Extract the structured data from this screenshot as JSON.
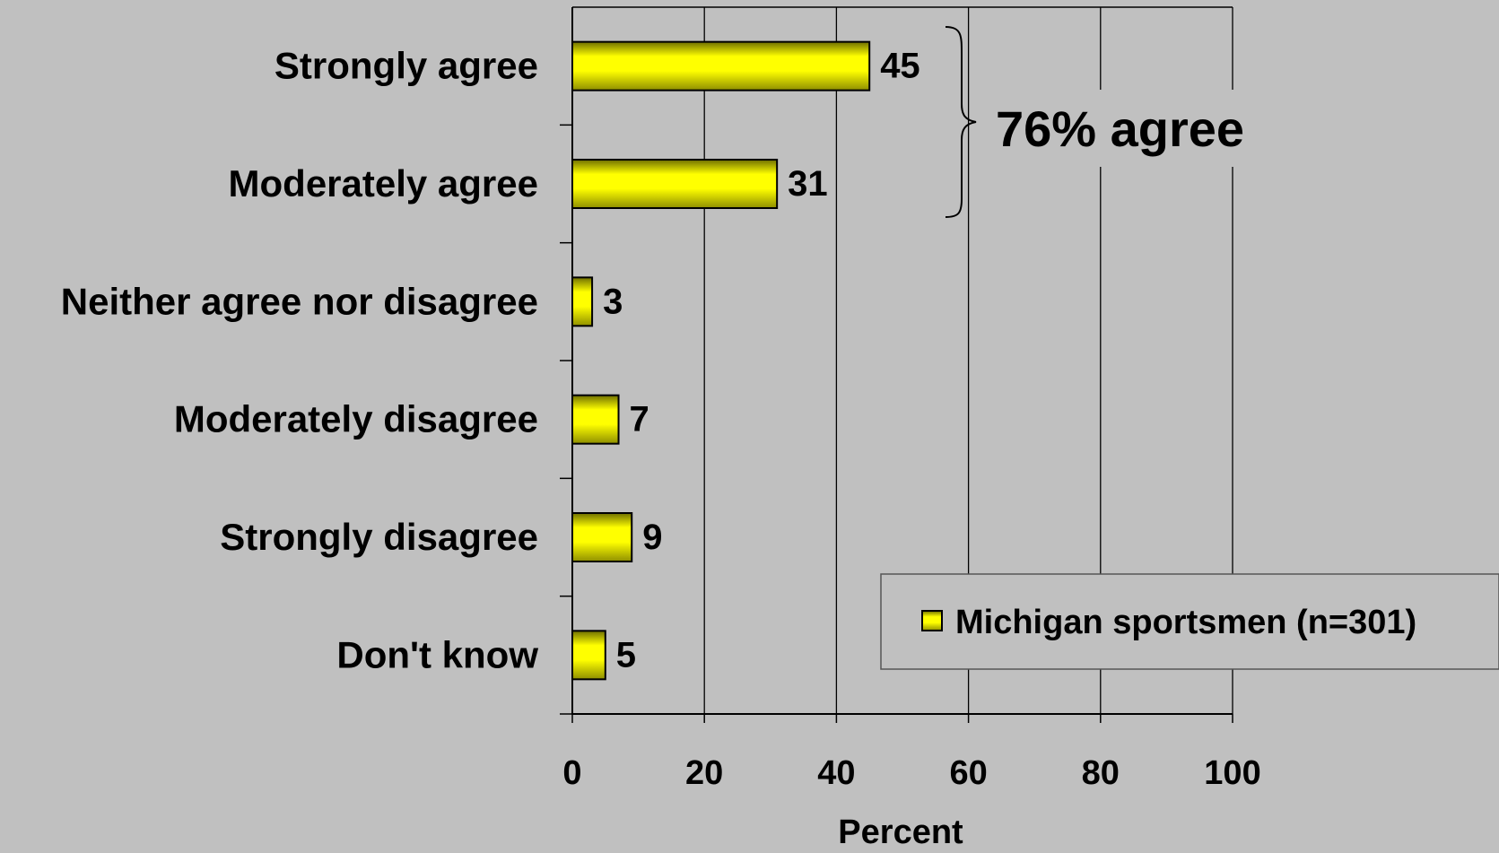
{
  "chart_data": {
    "type": "bar",
    "orientation": "horizontal",
    "categories": [
      "Strongly agree",
      "Moderately agree",
      "Neither agree nor disagree",
      "Moderately disagree",
      "Strongly disagree",
      "Don't know"
    ],
    "series": [
      {
        "name": "Michigan sportsmen (n=301)",
        "values": [
          45,
          31,
          3,
          7,
          9,
          5
        ]
      }
    ],
    "xlabel": "Percent",
    "ylabel": "",
    "xlim": [
      0,
      100
    ],
    "xticks": [
      "0",
      "20",
      "40",
      "60",
      "80",
      "100"
    ],
    "grid": true,
    "legend_position": "bottom-right",
    "annotation": "76% agree",
    "colors": {
      "bar": "#ffff00",
      "bar_edge": "#000000",
      "background": "#c0c0c0"
    }
  }
}
